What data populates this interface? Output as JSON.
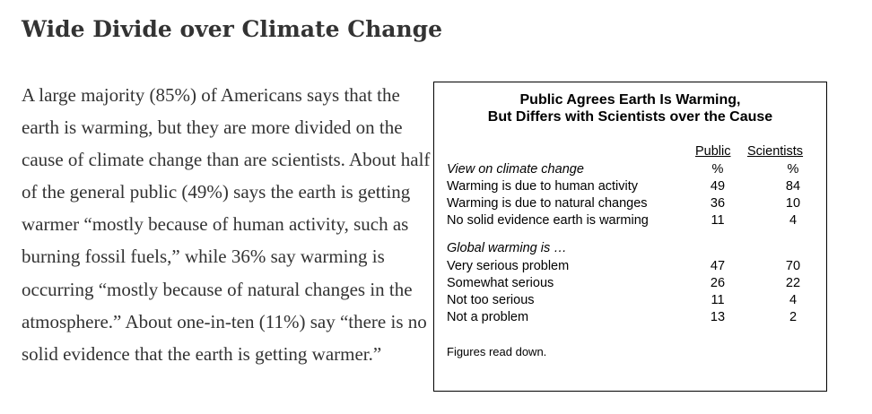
{
  "title": "Wide Divide over Climate Change",
  "paragraph": "A large majority (85%) of Americans says that the earth is warming, but they are more divided on the cause of climate change than are scientists. About half of the general public (49%) says the earth is getting warmer “mostly because of human activity, such as burning fossil fuels,” while 36% say warming is occurring “mostly because of natural changes in the atmosphere.” About one-in-ten (11%) say “there is no solid evidence that the earth is getting warmer.”",
  "table": {
    "title_line1": "Public Agrees Earth Is Warming,",
    "title_line2": "But Differs with Scientists over the Cause",
    "col_public": "Public",
    "col_scientists": "Scientists",
    "section1": {
      "heading": "View on climate change",
      "unit_public": "%",
      "unit_scientists": "%",
      "rows": [
        {
          "label": "Warming is due to human activity",
          "public": "49",
          "scientists": "84"
        },
        {
          "label": "Warming is due to natural changes",
          "public": "36",
          "scientists": "10"
        },
        {
          "label": "No solid evidence earth is warming",
          "public": "11",
          "scientists": "4"
        }
      ]
    },
    "section2": {
      "heading": "Global warming is …",
      "rows": [
        {
          "label": "Very serious problem",
          "public": "47",
          "scientists": "70"
        },
        {
          "label": "Somewhat serious",
          "public": "26",
          "scientists": "22"
        },
        {
          "label": "Not too serious",
          "public": "11",
          "scientists": "4"
        },
        {
          "label": "Not a problem",
          "public": "13",
          "scientists": "2"
        }
      ]
    },
    "note": "Figures read down."
  }
}
